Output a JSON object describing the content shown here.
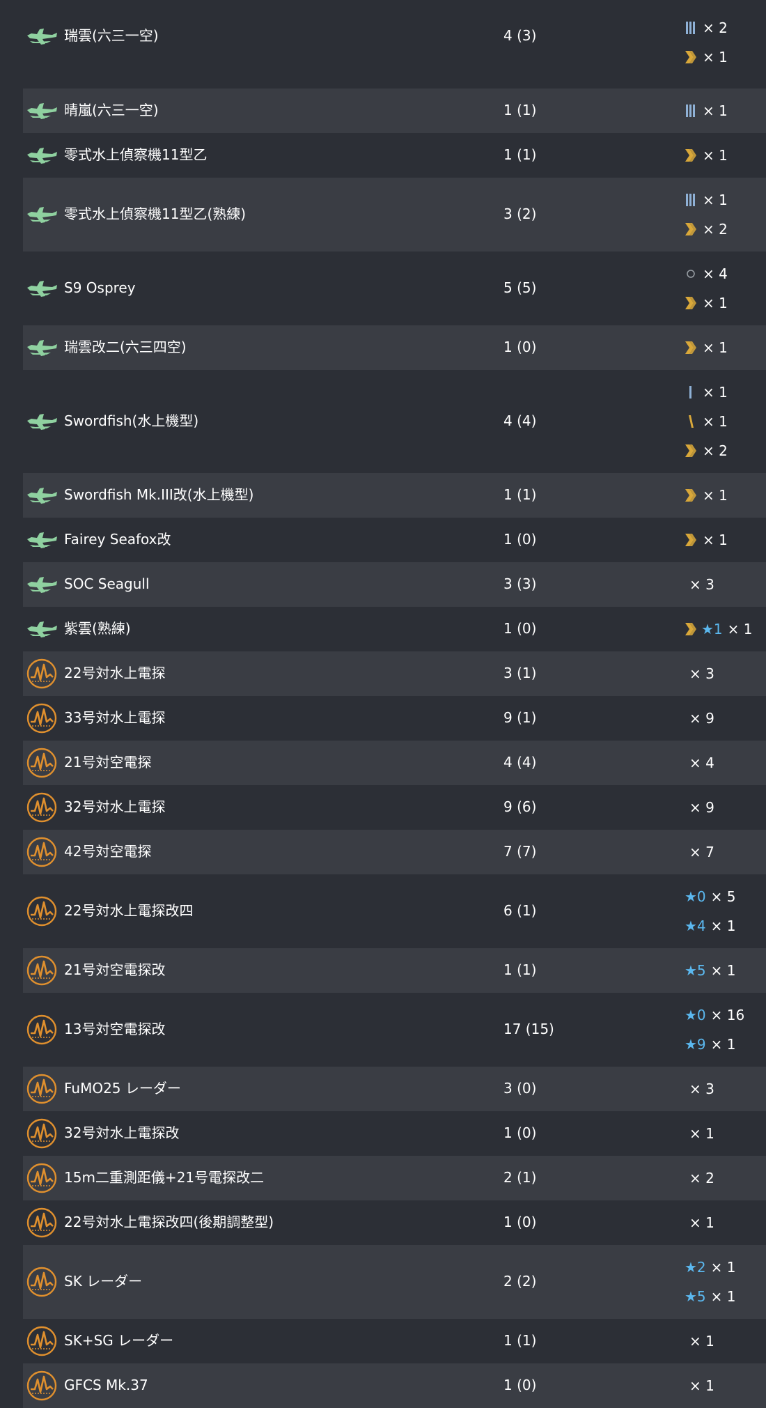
{
  "colors": {
    "row_dark": "#2c2f36",
    "row_light": "#3a3d44",
    "text": "#ffffff",
    "star": "#5bb8ef",
    "proficiency_gold": "#d9a83a",
    "proficiency_blue": "#8fb1d6",
    "seaplane_icon": "#8fd1a0",
    "radar_icon": "#e0902e"
  },
  "rows": [
    {
      "icon": "seaplane-icon",
      "name": "瑞雲(六三一空)",
      "count": "4 (3)",
      "details": [
        {
          "prof": "proficiency-4-icon",
          "star": "",
          "mult": "× 2"
        },
        {
          "prof": "proficiency-7-icon",
          "star": "",
          "mult": "× 1"
        }
      ]
    },
    {
      "icon": "seaplane-icon",
      "name": "晴嵐(六三一空)",
      "count": "1 (1)",
      "details": [
        {
          "prof": "proficiency-4-icon",
          "star": "",
          "mult": "× 1"
        }
      ]
    },
    {
      "icon": "seaplane-icon",
      "name": "零式水上偵察機11型乙",
      "count": "1 (1)",
      "details": [
        {
          "prof": "proficiency-7-icon",
          "star": "",
          "mult": "× 1"
        }
      ]
    },
    {
      "icon": "seaplane-icon",
      "name": "零式水上偵察機11型乙(熟練)",
      "count": "3 (2)",
      "details": [
        {
          "prof": "proficiency-4-icon",
          "star": "",
          "mult": "× 1"
        },
        {
          "prof": "proficiency-7-icon",
          "star": "",
          "mult": "× 2"
        }
      ]
    },
    {
      "icon": "seaplane-icon",
      "name": "S9 Osprey",
      "count": "5 (5)",
      "details": [
        {
          "prof": "proficiency-0-icon",
          "star": "",
          "mult": "× 4"
        },
        {
          "prof": "proficiency-7-icon",
          "star": "",
          "mult": "× 1"
        }
      ]
    },
    {
      "icon": "seaplane-icon",
      "name": "瑞雲改二(六三四空)",
      "count": "1 (0)",
      "details": [
        {
          "prof": "proficiency-7-icon",
          "star": "",
          "mult": "× 1"
        }
      ]
    },
    {
      "icon": "seaplane-icon",
      "name": "Swordfish(水上機型)",
      "count": "4 (4)",
      "details": [
        {
          "prof": "proficiency-1-icon",
          "star": "",
          "mult": "× 1"
        },
        {
          "prof": "proficiency-5-icon",
          "star": "",
          "mult": "× 1"
        },
        {
          "prof": "proficiency-7-icon",
          "star": "",
          "mult": "× 2"
        }
      ]
    },
    {
      "icon": "seaplane-icon",
      "name": "Swordfish Mk.III改(水上機型)",
      "count": "1 (1)",
      "details": [
        {
          "prof": "proficiency-7-icon",
          "star": "",
          "mult": "× 1"
        }
      ]
    },
    {
      "icon": "seaplane-icon",
      "name": "Fairey Seafox改",
      "count": "1 (0)",
      "details": [
        {
          "prof": "proficiency-7-icon",
          "star": "",
          "mult": "× 1"
        }
      ]
    },
    {
      "icon": "seaplane-icon",
      "name": "SOC Seagull",
      "count": "3 (3)",
      "details": [
        {
          "prof": "",
          "star": "",
          "mult": "× 3"
        }
      ]
    },
    {
      "icon": "seaplane-icon",
      "name": "紫雲(熟練)",
      "count": "1 (0)",
      "details": [
        {
          "prof": "proficiency-7-icon",
          "star": "★1",
          "mult": "× 1"
        }
      ]
    },
    {
      "icon": "radar-icon",
      "name": "22号対水上電探",
      "count": "3 (1)",
      "details": [
        {
          "prof": "",
          "star": "",
          "mult": "× 3"
        }
      ]
    },
    {
      "icon": "radar-icon",
      "name": "33号対水上電探",
      "count": "9 (1)",
      "details": [
        {
          "prof": "",
          "star": "",
          "mult": "× 9"
        }
      ]
    },
    {
      "icon": "radar-icon",
      "name": "21号対空電探",
      "count": "4 (4)",
      "details": [
        {
          "prof": "",
          "star": "",
          "mult": "× 4"
        }
      ]
    },
    {
      "icon": "radar-icon",
      "name": "32号対水上電探",
      "count": "9 (6)",
      "details": [
        {
          "prof": "",
          "star": "",
          "mult": "× 9"
        }
      ]
    },
    {
      "icon": "radar-icon",
      "name": "42号対空電探",
      "count": "7 (7)",
      "details": [
        {
          "prof": "",
          "star": "",
          "mult": "× 7"
        }
      ]
    },
    {
      "icon": "radar-icon",
      "name": "22号対水上電探改四",
      "count": "6 (1)",
      "details": [
        {
          "prof": "",
          "star": "★0",
          "mult": "× 5"
        },
        {
          "prof": "",
          "star": "★4",
          "mult": "× 1"
        }
      ]
    },
    {
      "icon": "radar-icon",
      "name": "21号対空電探改",
      "count": "1 (1)",
      "details": [
        {
          "prof": "",
          "star": "★5",
          "mult": "× 1"
        }
      ]
    },
    {
      "icon": "radar-icon",
      "name": "13号対空電探改",
      "count": "17 (15)",
      "details": [
        {
          "prof": "",
          "star": "★0",
          "mult": "× 16"
        },
        {
          "prof": "",
          "star": "★9",
          "mult": "× 1"
        }
      ]
    },
    {
      "icon": "radar-icon",
      "name": "FuMO25 レーダー",
      "count": "3 (0)",
      "details": [
        {
          "prof": "",
          "star": "",
          "mult": "× 3"
        }
      ]
    },
    {
      "icon": "radar-icon",
      "name": "32号対水上電探改",
      "count": "1 (0)",
      "details": [
        {
          "prof": "",
          "star": "",
          "mult": "× 1"
        }
      ]
    },
    {
      "icon": "radar-icon",
      "name": "15m二重測距儀+21号電探改二",
      "count": "2 (1)",
      "details": [
        {
          "prof": "",
          "star": "",
          "mult": "× 2"
        }
      ]
    },
    {
      "icon": "radar-icon",
      "name": "22号対水上電探改四(後期調整型)",
      "count": "1 (0)",
      "details": [
        {
          "prof": "",
          "star": "",
          "mult": "× 1"
        }
      ]
    },
    {
      "icon": "radar-icon",
      "name": "SK レーダー",
      "count": "2 (2)",
      "details": [
        {
          "prof": "",
          "star": "★2",
          "mult": "× 1"
        },
        {
          "prof": "",
          "star": "★5",
          "mult": "× 1"
        }
      ]
    },
    {
      "icon": "radar-icon",
      "name": "SK+SG レーダー",
      "count": "1 (1)",
      "details": [
        {
          "prof": "",
          "star": "",
          "mult": "× 1"
        }
      ]
    },
    {
      "icon": "radar-icon",
      "name": "GFCS Mk.37",
      "count": "1 (0)",
      "details": [
        {
          "prof": "",
          "star": "",
          "mult": "× 1"
        }
      ]
    }
  ]
}
